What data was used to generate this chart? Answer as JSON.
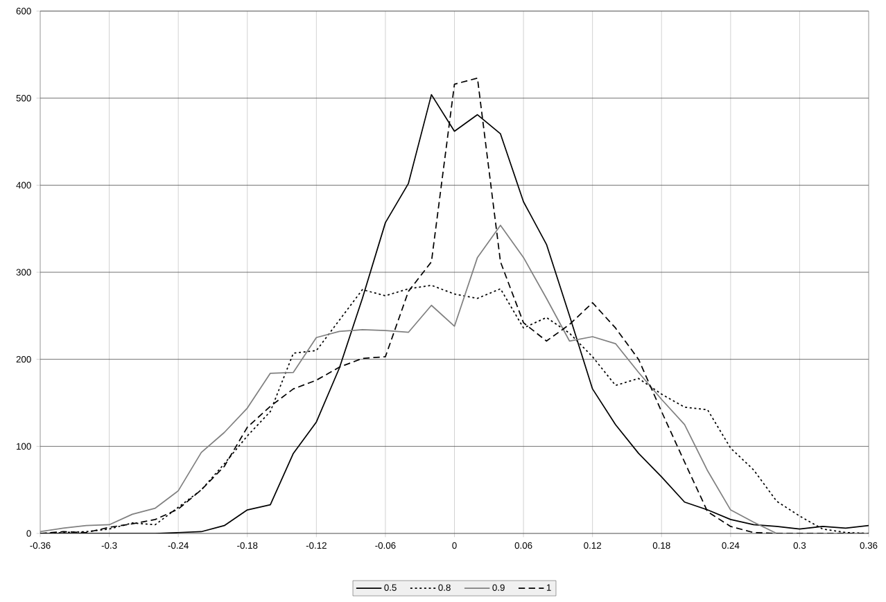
{
  "chart_data": {
    "type": "line",
    "x": [
      -0.36,
      -0.34,
      -0.32,
      -0.3,
      -0.28,
      -0.26,
      -0.24,
      -0.22,
      -0.2,
      -0.18,
      -0.16,
      -0.14,
      -0.12,
      -0.1,
      -0.08,
      -0.06,
      -0.04,
      -0.02,
      0,
      0.02,
      0.04,
      0.06,
      0.08,
      0.1,
      0.12,
      0.14,
      0.16,
      0.18,
      0.2,
      0.22,
      0.24,
      0.26,
      0.28,
      0.3,
      0.32,
      0.34,
      0.36
    ],
    "series": [
      {
        "name": "0.5",
        "color": "#000000",
        "line_style": "solid",
        "values": [
          0,
          0,
          0,
          0,
          0,
          0,
          1,
          2,
          9,
          27,
          33,
          92,
          128,
          190,
          270,
          357,
          402,
          504,
          462,
          481,
          459,
          381,
          332,
          250,
          166,
          125,
          92,
          65,
          36,
          27,
          16,
          10,
          8,
          5,
          8,
          6,
          9
        ]
      },
      {
        "name": "0.8",
        "color": "#000000",
        "line_style": "dotted",
        "values": [
          0,
          1,
          2,
          5,
          12,
          10,
          30,
          50,
          80,
          112,
          140,
          207,
          210,
          245,
          280,
          273,
          281,
          285,
          275,
          270,
          281,
          236,
          248,
          230,
          203,
          170,
          178,
          160,
          145,
          142,
          98,
          73,
          37,
          20,
          5,
          1,
          0
        ]
      },
      {
        "name": "0.9",
        "color": "#808080",
        "line_style": "solid",
        "values": [
          2,
          6,
          9,
          10,
          22,
          29,
          49,
          93,
          116,
          144,
          184,
          185,
          225,
          232,
          234,
          233,
          231,
          262,
          238,
          317,
          354,
          317,
          270,
          221,
          226,
          218,
          185,
          154,
          125,
          72,
          27,
          13,
          0,
          0,
          0,
          0,
          0
        ]
      },
      {
        "name": "1",
        "color": "#000000",
        "line_style": "dashed",
        "values": [
          0,
          2,
          1,
          7,
          11,
          16,
          28,
          50,
          77,
          122,
          146,
          166,
          176,
          191,
          201,
          203,
          278,
          312,
          516,
          523,
          312,
          242,
          221,
          240,
          265,
          236,
          200,
          140,
          82,
          25,
          8,
          1,
          0,
          0,
          0,
          0,
          0
        ]
      }
    ],
    "xlim": [
      -0.36,
      0.36
    ],
    "ylim": [
      0,
      600
    ],
    "xticks": [
      -0.36,
      -0.3,
      -0.24,
      -0.18,
      -0.12,
      -0.06,
      0,
      0.06,
      0.12,
      0.18,
      0.24,
      0.3,
      0.36
    ],
    "yticks": [
      0,
      100,
      200,
      300,
      400,
      500,
      600
    ],
    "grid": true,
    "legend": "bottom"
  }
}
